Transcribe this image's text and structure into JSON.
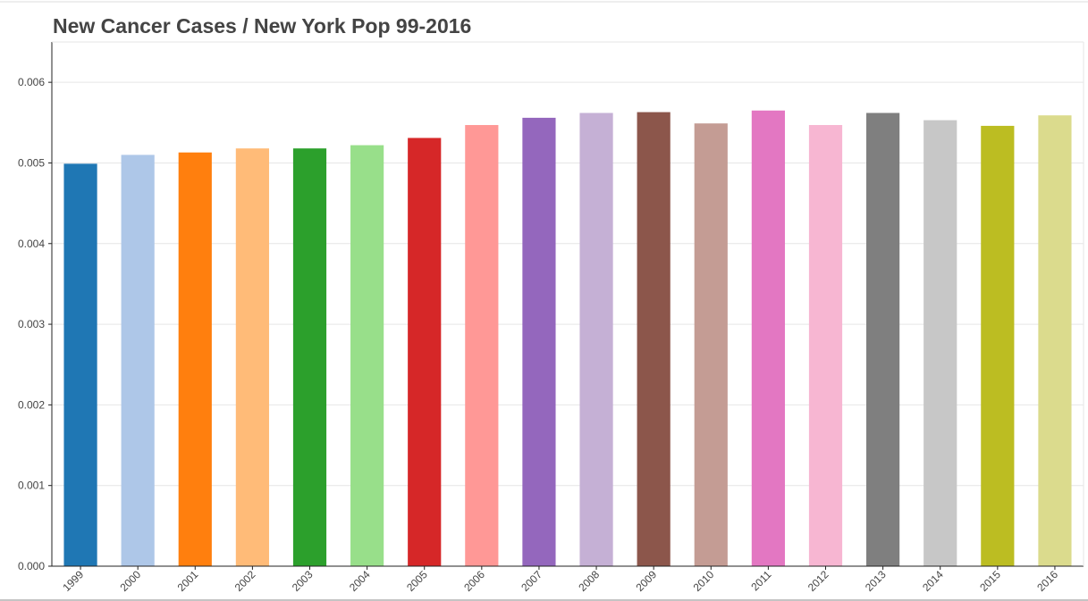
{
  "chart_data": {
    "type": "bar",
    "title": "New Cancer Cases / New York Pop 99-2016",
    "xlabel": "",
    "ylabel": "",
    "categories": [
      "1999",
      "2000",
      "2001",
      "2002",
      "2003",
      "2004",
      "2005",
      "2006",
      "2007",
      "2008",
      "2009",
      "2010",
      "2011",
      "2012",
      "2013",
      "2014",
      "2015",
      "2016"
    ],
    "values": [
      0.00499,
      0.0051,
      0.00513,
      0.00518,
      0.00518,
      0.00522,
      0.00531,
      0.00547,
      0.00556,
      0.00562,
      0.00563,
      0.00549,
      0.00565,
      0.00547,
      0.00562,
      0.00553,
      0.00546,
      0.00559
    ],
    "ylim": [
      0,
      0.0065
    ],
    "yticks": [
      "0.000",
      "0.001",
      "0.002",
      "0.003",
      "0.004",
      "0.005",
      "0.006"
    ],
    "colors": [
      "#1f77b4",
      "#aec7e8",
      "#ff7f0e",
      "#ffbb78",
      "#2ca02c",
      "#98df8a",
      "#d62728",
      "#ff9896",
      "#9467bd",
      "#c5b0d5",
      "#8c564b",
      "#c49c94",
      "#e377c2",
      "#f7b6d2",
      "#7f7f7f",
      "#c7c7c7",
      "#bcbd22",
      "#dbdb8d"
    ],
    "grid": true,
    "legend": "none"
  }
}
